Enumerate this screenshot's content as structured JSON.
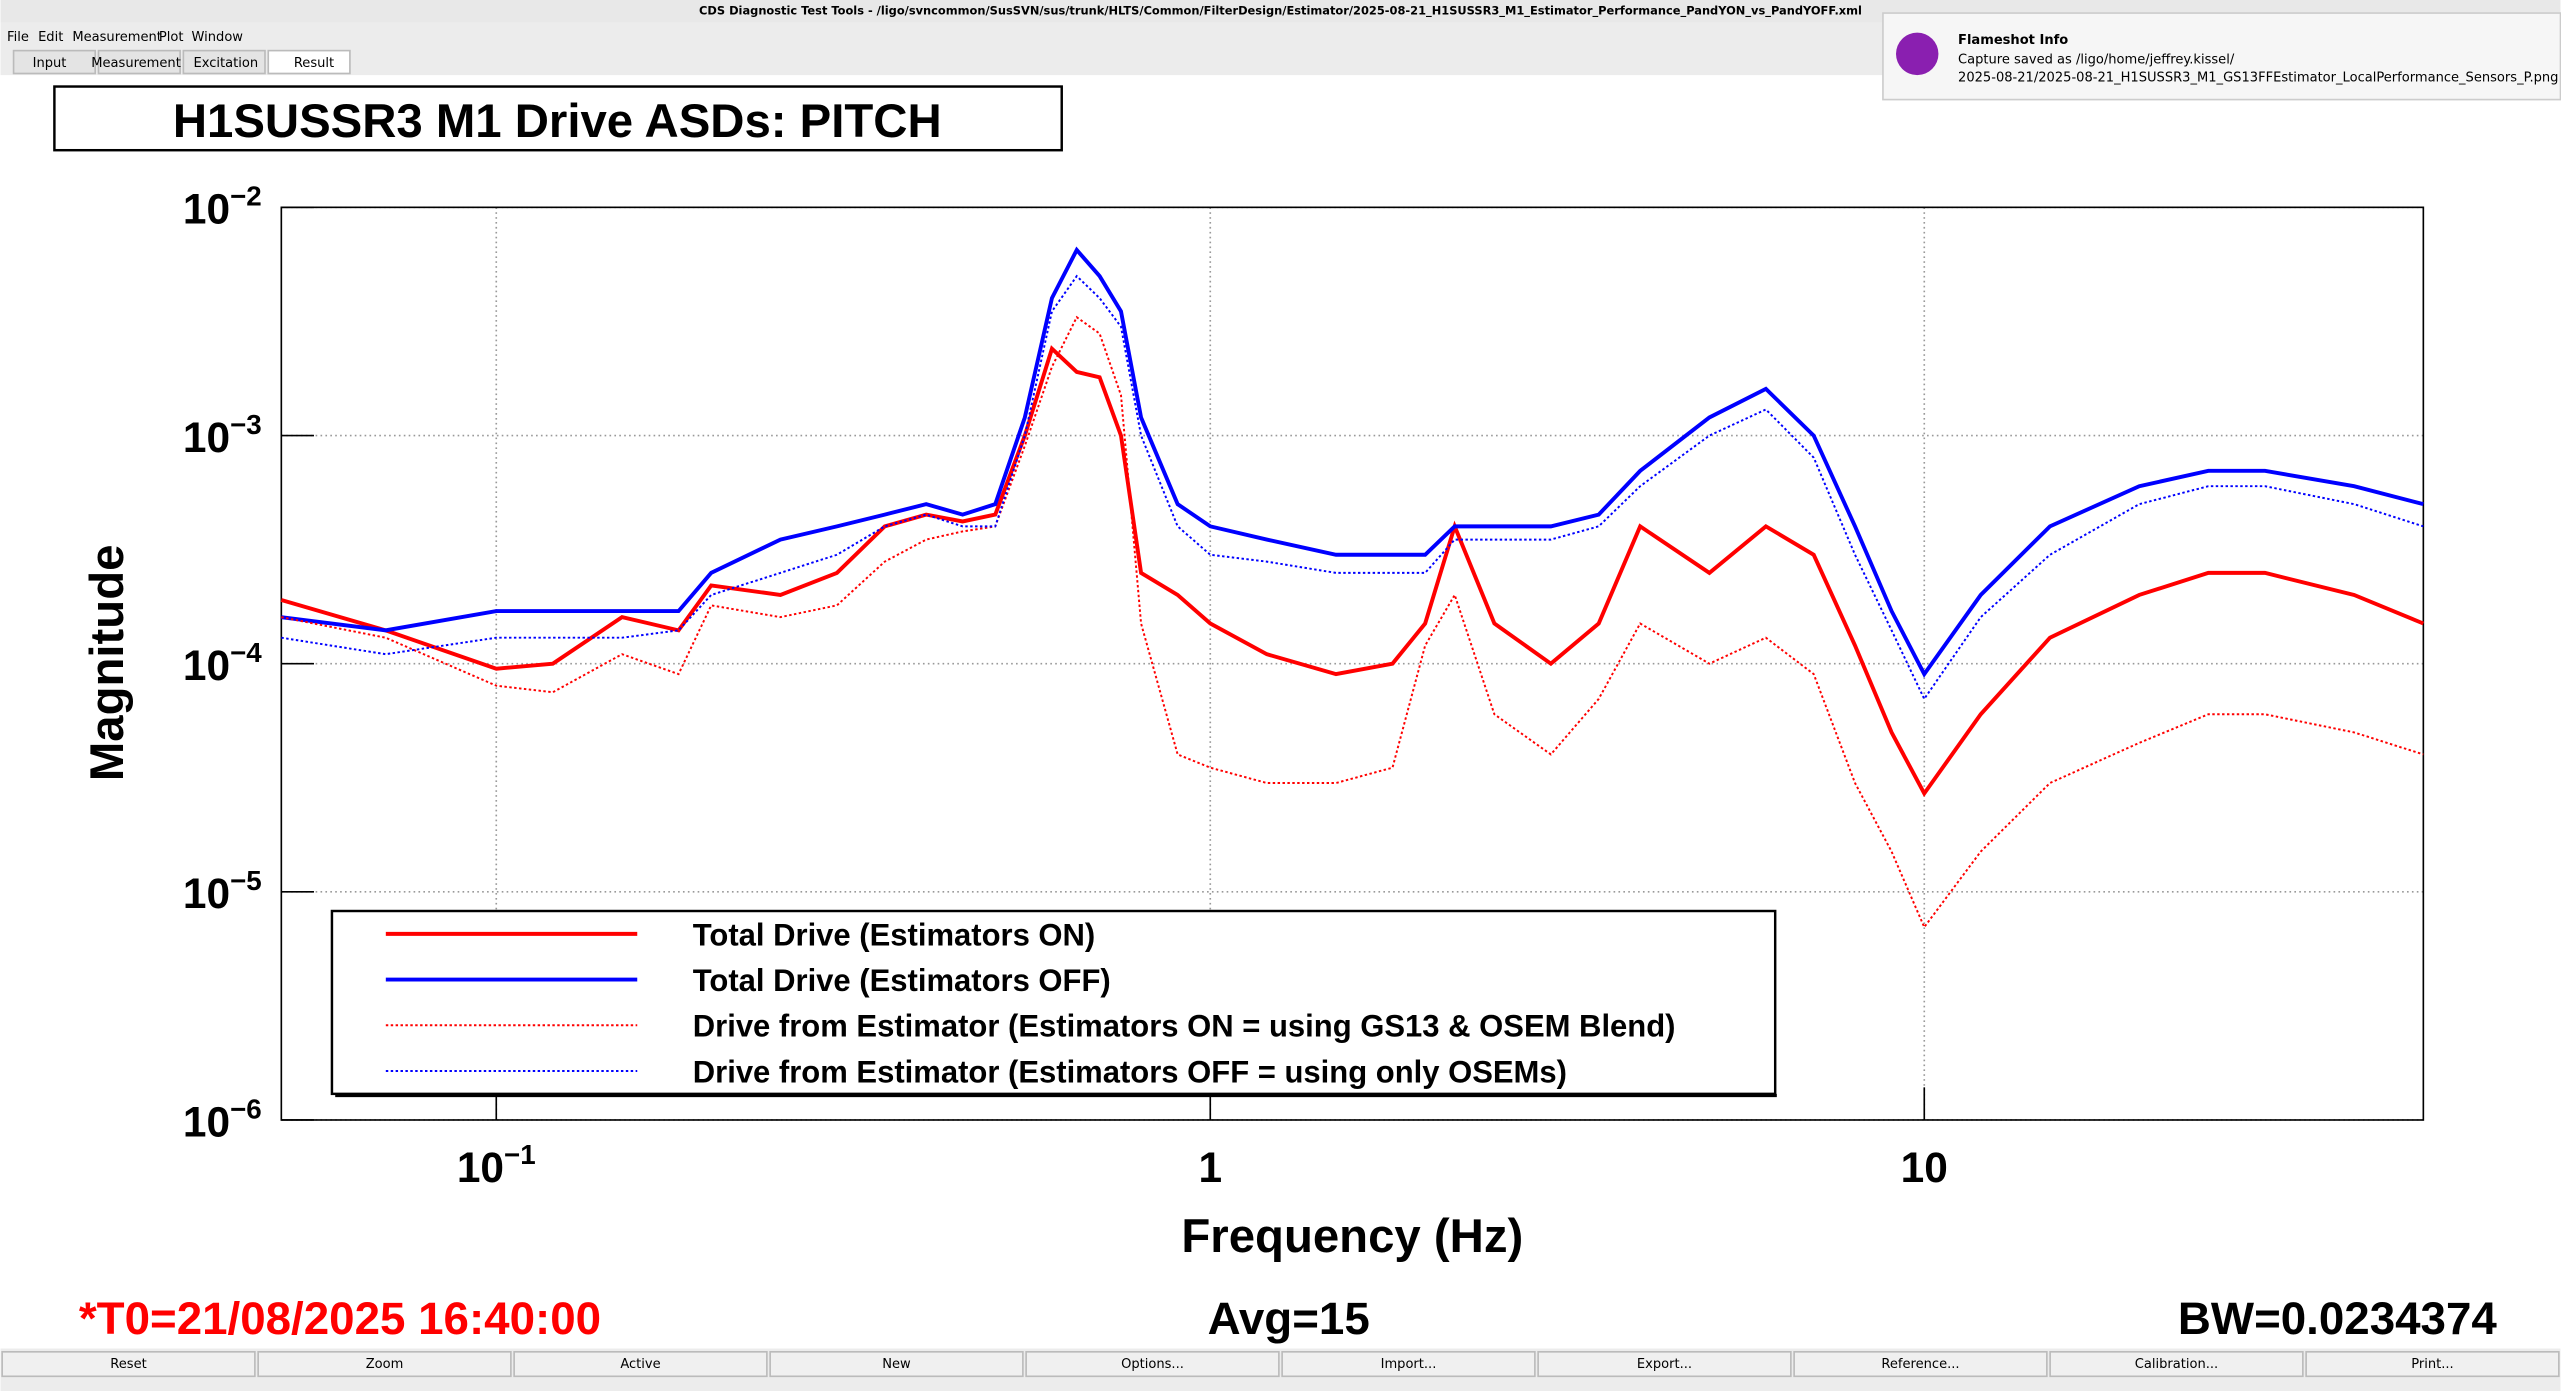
{
  "window": {
    "title": "CDS Diagnostic Test Tools - /ligo/svncommon/SusSVN/sus/trunk/HLTS/Common/FilterDesign/Estimator/2025-08-21_H1SUSSR3_M1_Estimator_Performance_PandYON_vs_PandYOFF.xml",
    "menu": [
      "File",
      "Edit",
      "Measurement",
      "Plot",
      "Window"
    ],
    "tabs": [
      "Input",
      "Measurement",
      "Excitation",
      "Result"
    ],
    "notification": {
      "title": "Flameshot Info",
      "lines": [
        "Capture saved as /ligo/home/jeffrey.kissel/",
        "2025-08-21/2025-08-21_H1SUSSR3_M1_GS13FFEstimator_LocalPerformance_Sensors_P.png"
      ]
    },
    "buttons": [
      "Reset",
      "Zoom",
      "Active",
      "New",
      "Options...",
      "Import...",
      "Export...",
      "Reference...",
      "Calibration...",
      "Print..."
    ]
  },
  "chart_data": {
    "type": "line",
    "title": "H1SUSSR3 M1 Drive ASDs: PITCH",
    "xlabel": "Frequency (Hz)",
    "ylabel": "Magnitude",
    "xscale": "log",
    "yscale": "log",
    "xlim": [
      0.05,
      50
    ],
    "ylim": [
      1e-06,
      0.01
    ],
    "xticks": [
      {
        "value": 0.1,
        "label": "10−1"
      },
      1,
      10
    ],
    "yticks": [
      {
        "value": 0.01,
        "label": "10−2"
      },
      {
        "value": 0.001,
        "label": "10−3"
      },
      {
        "value": 0.0001,
        "label": "10−4"
      },
      {
        "value": 1e-05,
        "label": "10−5"
      },
      {
        "value": 1e-06,
        "label": "10−6"
      }
    ],
    "grid": true,
    "legend_position": "lower left",
    "x": [
      0.05,
      0.07,
      0.1,
      0.12,
      0.15,
      0.18,
      0.2,
      0.25,
      0.3,
      0.35,
      0.4,
      0.45,
      0.5,
      0.55,
      0.6,
      0.65,
      0.7,
      0.75,
      0.8,
      0.9,
      1.0,
      1.2,
      1.5,
      1.8,
      2.0,
      2.2,
      2.5,
      3,
      3.5,
      4,
      5,
      6,
      7,
      8,
      9,
      10,
      12,
      15,
      20,
      25,
      30,
      40,
      50
    ],
    "series": [
      {
        "name": "Total Drive (Estimators ON)",
        "color": "#ff0000",
        "style": "solid",
        "values": [
          0.00019,
          0.00014,
          9.5e-05,
          0.0001,
          0.00016,
          0.00014,
          0.00022,
          0.0002,
          0.00025,
          0.0004,
          0.00045,
          0.00042,
          0.00045,
          0.001,
          0.0024,
          0.0019,
          0.0018,
          0.001,
          0.00025,
          0.0002,
          0.00015,
          0.00011,
          9e-05,
          0.0001,
          0.00015,
          0.0004,
          0.00015,
          0.0001,
          0.00015,
          0.0004,
          0.00025,
          0.0004,
          0.0003,
          0.00012,
          5e-05,
          2.7e-05,
          6e-05,
          0.00013,
          0.0002,
          0.00025,
          0.00025,
          0.0002,
          0.00015
        ]
      },
      {
        "name": "Total Drive (Estimators OFF)",
        "color": "#0000ff",
        "style": "solid",
        "values": [
          0.00016,
          0.00014,
          0.00017,
          0.00017,
          0.00017,
          0.00017,
          0.00025,
          0.00035,
          0.0004,
          0.00045,
          0.0005,
          0.00045,
          0.0005,
          0.0012,
          0.004,
          0.0065,
          0.005,
          0.0035,
          0.0012,
          0.0005,
          0.0004,
          0.00035,
          0.0003,
          0.0003,
          0.0003,
          0.0004,
          0.0004,
          0.0004,
          0.00045,
          0.0007,
          0.0012,
          0.0016,
          0.001,
          0.0004,
          0.00017,
          9e-05,
          0.0002,
          0.0004,
          0.0006,
          0.0007,
          0.0007,
          0.0006,
          0.0005
        ]
      },
      {
        "name": "Drive from Estimator (Estimators ON = using GS13 & OSEM Blend)",
        "color": "#ff0000",
        "style": "dotted",
        "values": [
          0.00016,
          0.00013,
          8e-05,
          7.5e-05,
          0.00011,
          9e-05,
          0.00018,
          0.00016,
          0.00018,
          0.00028,
          0.00035,
          0.00038,
          0.0004,
          0.0009,
          0.002,
          0.0033,
          0.0028,
          0.0015,
          0.00015,
          4e-05,
          3.5e-05,
          3e-05,
          3e-05,
          3.5e-05,
          0.00012,
          0.0002,
          6e-05,
          4e-05,
          7e-05,
          0.00015,
          0.0001,
          0.00013,
          9e-05,
          3e-05,
          1.5e-05,
          7e-06,
          1.5e-05,
          3e-05,
          4.5e-05,
          6e-05,
          6e-05,
          5e-05,
          4e-05
        ]
      },
      {
        "name": "Drive from Estimator (Estimators OFF = using only OSEMs)",
        "color": "#0000ff",
        "style": "dotted",
        "values": [
          0.00013,
          0.00011,
          0.00013,
          0.00013,
          0.00013,
          0.00014,
          0.0002,
          0.00025,
          0.0003,
          0.0004,
          0.00045,
          0.0004,
          0.0004,
          0.001,
          0.0035,
          0.005,
          0.004,
          0.003,
          0.001,
          0.0004,
          0.0003,
          0.00028,
          0.00025,
          0.00025,
          0.00025,
          0.00035,
          0.00035,
          0.00035,
          0.0004,
          0.0006,
          0.001,
          0.0013,
          0.0008,
          0.0003,
          0.00014,
          7e-05,
          0.00016,
          0.0003,
          0.0005,
          0.0006,
          0.0006,
          0.0005,
          0.0004
        ]
      }
    ],
    "t0_label": "*T0=21/08/2025 16:40:00",
    "avg_label": "Avg=15",
    "bw_label": "BW=0.0234374"
  }
}
